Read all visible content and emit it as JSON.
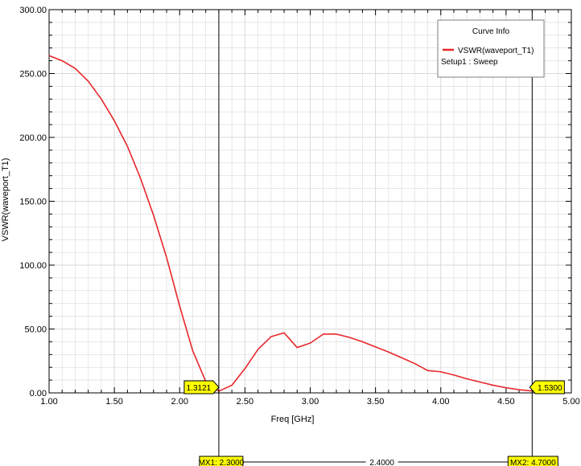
{
  "chart_data": {
    "type": "line",
    "xlabel": "Freq [GHz]",
    "ylabel": "VSWR(waveport_T1)",
    "xlim": [
      1.0,
      5.0
    ],
    "ylim": [
      0.0,
      300.0
    ],
    "x_ticks": [
      "1.00",
      "1.50",
      "2.00",
      "2.50",
      "3.00",
      "3.50",
      "4.00",
      "4.50",
      "5.00"
    ],
    "y_ticks": [
      "0.00",
      "50.00",
      "100.00",
      "150.00",
      "200.00",
      "250.00",
      "300.00"
    ],
    "grid": true,
    "legend": {
      "title": "Curve Info",
      "placement": "top-right",
      "entries": [
        {
          "name": "VSWR(waveport_T1)",
          "detail": "Setup1 : Sweep",
          "color": "#e8262a"
        }
      ]
    },
    "series": [
      {
        "name": "VSWR(waveport_T1)",
        "color": "#e8262a",
        "x": [
          1.0,
          1.1,
          1.2,
          1.3,
          1.4,
          1.5,
          1.6,
          1.7,
          1.8,
          1.9,
          2.0,
          2.1,
          2.2,
          2.3,
          2.4,
          2.5,
          2.6,
          2.7,
          2.8,
          2.9,
          3.0,
          3.1,
          3.2,
          3.3,
          3.4,
          3.5,
          3.6,
          3.7,
          3.8,
          3.9,
          4.0,
          4.1,
          4.2,
          4.3,
          4.4,
          4.5,
          4.6,
          4.7
        ],
        "y": [
          264.0,
          260.0,
          254.0,
          244.0,
          230.0,
          213.0,
          193.0,
          168.0,
          139.0,
          106.0,
          68.0,
          33.0,
          9.0,
          1.3,
          6.0,
          19.0,
          34.0,
          44.0,
          47.0,
          35.5,
          39.0,
          46.0,
          46.0,
          43.5,
          40.0,
          36.0,
          32.0,
          27.5,
          23.0,
          17.5,
          16.5,
          14.0,
          11.0,
          8.5,
          6.0,
          4.0,
          2.5,
          1.5
        ]
      }
    ],
    "markers": [
      {
        "name": "MX1",
        "label": "MX1: 2.3000",
        "x": 2.3,
        "value_label": "1.3121"
      },
      {
        "name": "MX2",
        "label": "MX2: 4.7000",
        "x": 4.7,
        "value_label": "1.5300"
      }
    ],
    "delta_label": "2.4000"
  },
  "colors": {
    "curve": "#e8262a",
    "marker_tag": "#ffff00",
    "grid": "#d9d9d9",
    "axis": "#000000"
  }
}
